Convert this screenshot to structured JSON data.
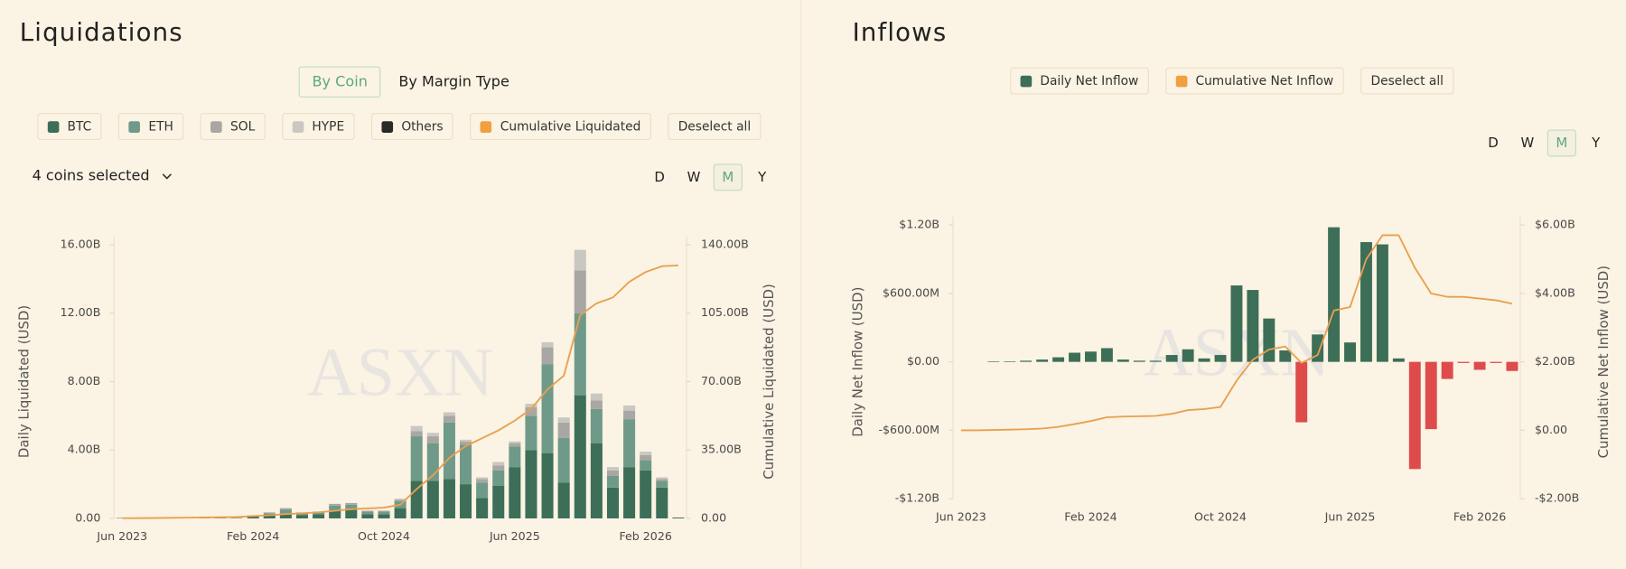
{
  "chart_data": [
    {
      "type": "bar",
      "stacked": true,
      "title": "Liquidations",
      "view_tabs": [
        "By Coin",
        "By Margin Type"
      ],
      "active_view": 0,
      "coin_selector": "4 coins selected",
      "intervals": [
        "D",
        "W",
        "M",
        "Y"
      ],
      "active_interval": 2,
      "deselect_label": "Deselect all",
      "watermark": "ASXN",
      "ylabel": "Daily Liquidated (USD)",
      "y2label": "Cumulative Liquidated (USD)",
      "categories": [
        "Jun 2023",
        null,
        null,
        null,
        null,
        null,
        null,
        null,
        "Feb 2024",
        null,
        null,
        null,
        null,
        null,
        null,
        null,
        "Oct 2024",
        null,
        null,
        null,
        null,
        null,
        null,
        null,
        "Jun 2025",
        null,
        null,
        null,
        null,
        null,
        null,
        null,
        "Feb 2026",
        null,
        null
      ],
      "ylim": [
        0,
        16
      ],
      "yticks": [
        {
          "value": 0,
          "label": "0.00"
        },
        {
          "value": 4,
          "label": "4.00B"
        },
        {
          "value": 8,
          "label": "8.00B"
        },
        {
          "value": 12,
          "label": "12.00B"
        },
        {
          "value": 16,
          "label": "16.00B"
        }
      ],
      "y2lim": [
        0,
        140
      ],
      "y2ticks": [
        {
          "value": 0,
          "label": "0.00"
        },
        {
          "value": 35,
          "label": "35.00B"
        },
        {
          "value": 70,
          "label": "70.00B"
        },
        {
          "value": 105,
          "label": "105.00B"
        },
        {
          "value": 140,
          "label": "140.00B"
        }
      ],
      "series": [
        {
          "name": "BTC",
          "color": "#3d6e58",
          "values": [
            0.02,
            0.02,
            0.02,
            0.02,
            0.02,
            0.02,
            0.02,
            0.02,
            0.1,
            0.2,
            0.3,
            0.2,
            0.25,
            0.45,
            0.5,
            0.25,
            0.25,
            0.6,
            2.2,
            2.2,
            2.3,
            2.0,
            1.2,
            1.9,
            3.0,
            4.0,
            3.8,
            2.1,
            7.2,
            4.4,
            1.8,
            3.0,
            2.8,
            1.8,
            0.05
          ]
        },
        {
          "name": "ETH",
          "color": "#6f9a8a",
          "values": [
            0.01,
            0.01,
            0.01,
            0.01,
            0.01,
            0.01,
            0.01,
            0.01,
            0.05,
            0.1,
            0.2,
            0.1,
            0.1,
            0.3,
            0.3,
            0.15,
            0.15,
            0.4,
            2.6,
            2.2,
            3.3,
            2.3,
            0.9,
            0.9,
            1.2,
            2.0,
            5.2,
            2.6,
            4.8,
            2.0,
            0.7,
            2.8,
            0.6,
            0.4,
            0
          ]
        },
        {
          "name": "SOL",
          "color": "#a9a7a3",
          "values": [
            0,
            0,
            0,
            0,
            0,
            0,
            0,
            0,
            0.02,
            0.05,
            0.1,
            0.05,
            0.05,
            0.1,
            0.1,
            0.05,
            0.05,
            0.1,
            0.3,
            0.4,
            0.4,
            0.2,
            0.2,
            0.3,
            0.2,
            0.5,
            1.0,
            0.9,
            2.5,
            0.5,
            0.3,
            0.5,
            0.3,
            0.1,
            0
          ]
        },
        {
          "name": "HYPE",
          "color": "#c9c7c2",
          "values": [
            0,
            0,
            0,
            0,
            0,
            0,
            0,
            0,
            0,
            0,
            0,
            0,
            0,
            0,
            0,
            0,
            0,
            0.05,
            0.3,
            0.2,
            0.2,
            0.1,
            0.1,
            0.2,
            0.1,
            0.2,
            0.3,
            0.3,
            1.2,
            0.4,
            0.2,
            0.3,
            0.2,
            0.1,
            0
          ]
        },
        {
          "name": "Others",
          "color": "#2b2926",
          "values": [
            null,
            null,
            null,
            null,
            null,
            null,
            null,
            null,
            null,
            null,
            null,
            null,
            null,
            null,
            null,
            null,
            null,
            null,
            null,
            null,
            null,
            null,
            null,
            null,
            null,
            null,
            null,
            null,
            null,
            null,
            null,
            null,
            null,
            null,
            null
          ]
        },
        {
          "name": "Cumulative Liquidated",
          "color": "#e8a04e",
          "swatch": "#f0a040",
          "type": "line",
          "axis": "y2",
          "values": [
            0.1,
            0.15,
            0.2,
            0.3,
            0.4,
            0.5,
            0.6,
            0.7,
            1.2,
            1.6,
            2.2,
            2.6,
            3.1,
            3.9,
            4.7,
            5.1,
            5.5,
            7,
            15,
            22,
            31,
            37,
            41,
            45,
            50,
            56,
            66,
            73,
            104,
            110,
            113,
            121,
            126,
            129,
            129.4
          ]
        }
      ]
    },
    {
      "type": "bar",
      "title": "Inflows",
      "intervals": [
        "D",
        "W",
        "M",
        "Y"
      ],
      "active_interval": 2,
      "deselect_label": "Deselect all",
      "watermark": "ASXN",
      "ylabel": "Daily Net Inflow (USD)",
      "y2label": "Cumulative Net Inflow (USD)",
      "negative_color": "#de4b4b",
      "categories": [
        "Jun 2023",
        null,
        null,
        null,
        null,
        null,
        null,
        null,
        "Feb 2024",
        null,
        null,
        null,
        null,
        null,
        null,
        null,
        "Oct 2024",
        null,
        null,
        null,
        null,
        null,
        null,
        null,
        "Jun 2025",
        null,
        null,
        null,
        null,
        null,
        null,
        null,
        "Feb 2026",
        null,
        null
      ],
      "ylim": [
        -1.2,
        1.2
      ],
      "yticks": [
        {
          "value": -1.2,
          "label": "-$1.20B"
        },
        {
          "value": -0.6,
          "label": "-$600.00M"
        },
        {
          "value": 0,
          "label": "$0.00"
        },
        {
          "value": 0.6,
          "label": "$600.00M"
        },
        {
          "value": 1.2,
          "label": "$1.20B"
        }
      ],
      "y2lim": [
        -2,
        6
      ],
      "y2ticks": [
        {
          "value": -2,
          "label": "-$2.00B"
        },
        {
          "value": 0,
          "label": "$0.00"
        },
        {
          "value": 2,
          "label": "$2.00B"
        },
        {
          "value": 4,
          "label": "$4.00B"
        },
        {
          "value": 6,
          "label": "$6.00B"
        }
      ],
      "series": [
        {
          "name": "Daily Net Inflow",
          "color": "#3d6e58",
          "values": [
            0,
            0,
            0.005,
            0.005,
            0.01,
            0.02,
            0.04,
            0.08,
            0.09,
            0.12,
            0.02,
            0.01,
            0.01,
            0.06,
            0.11,
            0.03,
            0.06,
            0.67,
            0.63,
            0.38,
            0.1,
            -0.53,
            0.24,
            1.18,
            0.17,
            1.05,
            1.03,
            0.03,
            -0.94,
            -0.59,
            -0.15,
            -0.01,
            -0.07,
            -0.01,
            -0.08
          ]
        },
        {
          "name": "Cumulative Net Inflow",
          "color": "#e8a04e",
          "swatch": "#f0a040",
          "type": "line",
          "axis": "y2",
          "values": [
            0,
            0,
            0.01,
            0.02,
            0.03,
            0.05,
            0.1,
            0.18,
            0.27,
            0.38,
            0.4,
            0.41,
            0.42,
            0.48,
            0.59,
            0.62,
            0.68,
            1.45,
            2.06,
            2.36,
            2.45,
            1.97,
            2.2,
            3.5,
            3.6,
            5.0,
            5.7,
            5.7,
            4.75,
            4.0,
            3.9,
            3.9,
            3.85,
            3.8,
            3.7
          ]
        }
      ]
    }
  ]
}
